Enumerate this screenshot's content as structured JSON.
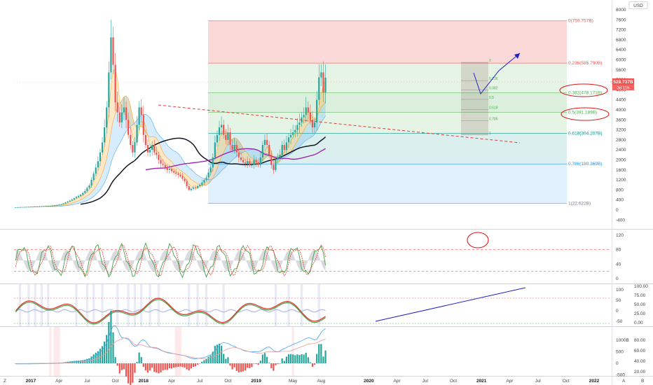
{
  "header": {
    "currency": "USD"
  },
  "chart_data": [
    {
      "type": "candlestick",
      "pane": "price",
      "title": "",
      "y_ticks": [
        "8000",
        "7600",
        "7200",
        "6800",
        "6400",
        "6000",
        "5600",
        "5200",
        "4800",
        "4400",
        "4000",
        "3600",
        "3200",
        "2800",
        "2400",
        "2000",
        "1600",
        "1200",
        "800",
        "400",
        "0",
        "-400"
      ],
      "y_partial_top": "8",
      "ylim": [
        -600,
        8300
      ],
      "last_price": "528.737B",
      "countdown": "3d 11h",
      "fib": [
        {
          "ratio": 0,
          "label": "0(759.757B)",
          "value": 7560,
          "color": "#ef5350"
        },
        {
          "ratio": 0.236,
          "label": "0.236(585.790B)",
          "value": 5870,
          "color": "#ef5350"
        },
        {
          "ratio": 0.382,
          "label": "0.382(478.171B)",
          "value": 4680,
          "color": "#4caf50"
        },
        {
          "ratio": 0.5,
          "label": "0.5(391.189B)",
          "value": 3900,
          "color": "#4caf50"
        },
        {
          "ratio": 0.618,
          "label": "0.618(304.207B)",
          "value": 3060,
          "color": "#009688"
        },
        {
          "ratio": 0.786,
          "label": "0.786(180.369B)",
          "value": 1840,
          "color": "#2196f3"
        },
        {
          "ratio": 1,
          "label": "1(22.622B)",
          "value": 260,
          "color": "#787b86"
        }
      ],
      "mini_fib": [
        {
          "label": "0",
          "value": 5900
        },
        {
          "label": "0.236",
          "value": 5170
        },
        {
          "label": "0.382",
          "value": 4800
        },
        {
          "label": "0.5",
          "value": 4420
        },
        {
          "label": "0.618",
          "value": 4020
        },
        {
          "label": "0.786",
          "value": 3560
        },
        {
          "label": "1",
          "value": 3000
        }
      ],
      "close": [
        110,
        112,
        115,
        118,
        120,
        122,
        125,
        128,
        130,
        135,
        140,
        145,
        150,
        155,
        160,
        165,
        170,
        180,
        190,
        200,
        215,
        230,
        260,
        300,
        340,
        380,
        420,
        470,
        520,
        560,
        610,
        680,
        760,
        880,
        980,
        1200,
        1450,
        1700,
        1950,
        2300,
        2700,
        3300,
        4100,
        5500,
        6900,
        5800,
        4300,
        3900,
        3500,
        3900,
        4100,
        3600,
        3000,
        2600,
        2300,
        2700,
        3400,
        4100,
        3800,
        3000,
        2600,
        2300,
        2400,
        2600,
        2300,
        2200,
        2000,
        1850,
        1800,
        1700,
        1600,
        1650,
        1550,
        1500,
        1450,
        1400,
        1350,
        1250,
        1150,
        950,
        800,
        850,
        900,
        880,
        950,
        1000,
        1100,
        1200,
        1300,
        1500,
        1700,
        2100,
        2700,
        3000,
        3300,
        3400,
        3000,
        2800,
        3100,
        2600,
        2400,
        2600,
        2300,
        2100,
        2000,
        1900,
        1850,
        1950,
        1800,
        1800,
        2000,
        1900,
        1800,
        2100,
        2600,
        2800,
        2600,
        2200,
        1800,
        1600,
        2000,
        2100,
        2200,
        2600,
        2400,
        2700,
        2900,
        3000,
        3100,
        3200,
        3400,
        3500,
        3700,
        3800,
        4100,
        3900,
        3600,
        3300,
        3500,
        4400,
        5300,
        5500,
        4700,
        5288
      ],
      "annotations": [
        "0(759.757B)",
        "0.236(585.790B)",
        "0.382(478.171B)",
        "0.5(391.189B)",
        "0.618(304.207B)",
        "0.786(180.369B)",
        "1(22.622B)"
      ]
    },
    {
      "type": "line",
      "pane": "stoch_rsi",
      "y_ticks": [
        "120",
        "80",
        "40",
        "0"
      ],
      "ylim": [
        -10,
        130
      ],
      "levels": [
        80,
        20
      ]
    },
    {
      "type": "line",
      "pane": "oscillator",
      "y_ticks": [
        "100",
        "50",
        "0",
        "-50"
      ],
      "y_ticks_right": [
        "100.00",
        "75.00",
        "50.00",
        "25.00",
        "0.00"
      ],
      "ylim": [
        -70,
        130
      ],
      "levels": [
        60,
        -60
      ]
    },
    {
      "type": "bar",
      "pane": "macd",
      "y_ticks": [
        "1000B",
        "500",
        "0",
        "-500"
      ],
      "y_ticks_right": [
        "80.00",
        "60.00",
        "40.00",
        "20.00"
      ],
      "ylim": [
        -650,
        1550
      ]
    }
  ],
  "time_axis": {
    "labels": [
      {
        "text": "2017",
        "bold": true,
        "t": 0
      },
      {
        "text": "Apr",
        "bold": false,
        "t": 13
      },
      {
        "text": "Jul",
        "bold": false,
        "t": 26
      },
      {
        "text": "Oct",
        "bold": false,
        "t": 39
      },
      {
        "text": "2018",
        "bold": true,
        "t": 52
      },
      {
        "text": "Apr",
        "bold": false,
        "t": 65
      },
      {
        "text": "Jul",
        "bold": false,
        "t": 78
      },
      {
        "text": "Oct",
        "bold": false,
        "t": 91
      },
      {
        "text": "2019",
        "bold": true,
        "t": 104
      },
      {
        "text": "May",
        "bold": false,
        "t": 121
      },
      {
        "text": "Aug",
        "bold": false,
        "t": 134
      },
      {
        "text": "2020",
        "bold": true,
        "t": 156
      },
      {
        "text": "Apr",
        "bold": false,
        "t": 169
      },
      {
        "text": "Jul",
        "bold": false,
        "t": 182
      },
      {
        "text": "Oct",
        "bold": false,
        "t": 195
      },
      {
        "text": "2021",
        "bold": true,
        "t": 208
      },
      {
        "text": "Apr",
        "bold": false,
        "t": 221
      },
      {
        "text": "Jul",
        "bold": false,
        "t": 234
      },
      {
        "text": "Oct",
        "bold": false,
        "t": 247
      },
      {
        "text": "2022",
        "bold": true,
        "t": 260
      }
    ],
    "corner_left": "Z",
    "corner_right": [
      "A",
      "B"
    ]
  },
  "colors": {
    "up": "#26a69a",
    "down": "#ef5350",
    "ma_black": "#131722",
    "ma_purple": "#9c27b0",
    "arrow": "#1e22c9",
    "trend_red": "#e53935",
    "annotation": "#e0181b"
  }
}
